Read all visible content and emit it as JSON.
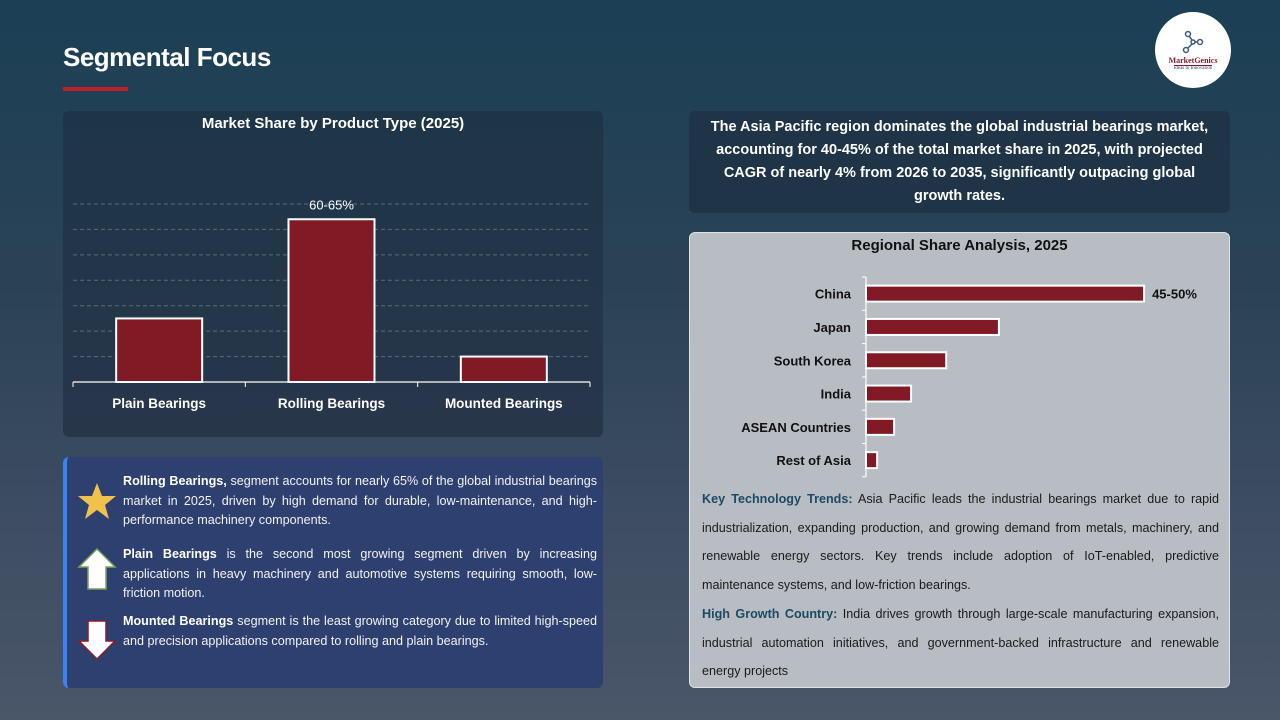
{
  "header": {
    "title": "Segmental Focus",
    "logo_text": "MarketGenics",
    "logo_tagline": "Ideas to Innovation"
  },
  "colors": {
    "bar": "#821a25",
    "accent": "#c0202a",
    "bullet_border": "#3b82f6"
  },
  "chart_data": [
    {
      "type": "bar",
      "title": "Market Share by Product Type (2025)",
      "categories": [
        "Plain Bearings",
        "Rolling Bearings",
        "Mounted Bearings"
      ],
      "values": [
        25,
        64,
        10
      ],
      "data_labels": [
        "",
        "60-65%",
        ""
      ],
      "ylim": [
        0,
        70
      ],
      "grid": true,
      "unit": "%"
    },
    {
      "type": "bar",
      "orientation": "horizontal",
      "title": "Regional Share Analysis, 2025",
      "categories": [
        "China",
        "Japan",
        "South Korea",
        "India",
        "ASEAN Countries",
        "Rest of Asia"
      ],
      "values": [
        47.5,
        22.7,
        13.7,
        7.7,
        4.8,
        1.9
      ],
      "data_labels": [
        "45-50%",
        "",
        "",
        "",
        "",
        ""
      ],
      "xlim": [
        0,
        55
      ],
      "grid": false,
      "unit": "%"
    }
  ],
  "bullets": [
    {
      "icon": "star-icon",
      "bold": "Rolling Bearings,",
      "text": " segment accounts for nearly 65% of the global industrial bearings market in 2025, driven by high demand for durable, low-maintenance, and high-performance machinery components."
    },
    {
      "icon": "arrow-up-icon",
      "bold": "Plain Bearings",
      "text": " is the second most growing segment driven by increasing applications in heavy machinery and automotive systems requiring smooth, low-friction motion."
    },
    {
      "icon": "arrow-down-icon",
      "bold": "Mounted Bearings",
      "text": " segment is the least growing category due to limited high-speed and precision applications compared to rolling and plain bearings."
    }
  ],
  "summary": "The Asia Pacific region dominates the global industrial bearings market, accounting for 40-45% of the total market share in 2025, with projected CAGR of nearly 4% from 2026 to 2035, significantly outpacing global growth rates.",
  "trends": {
    "key_label": "Key Technology Trends:",
    "key_text": " Asia Pacific leads the industrial bearings market due to rapid industrialization, expanding production, and growing demand from metals, machinery, and renewable energy sectors. Key trends include adoption of IoT-enabled, predictive maintenance systems, and low-friction bearings.",
    "growth_label": "High Growth Country:",
    "growth_text": " India drives growth through large-scale manufacturing expansion, industrial automation initiatives, and government-backed infrastructure and renewable energy projects"
  }
}
